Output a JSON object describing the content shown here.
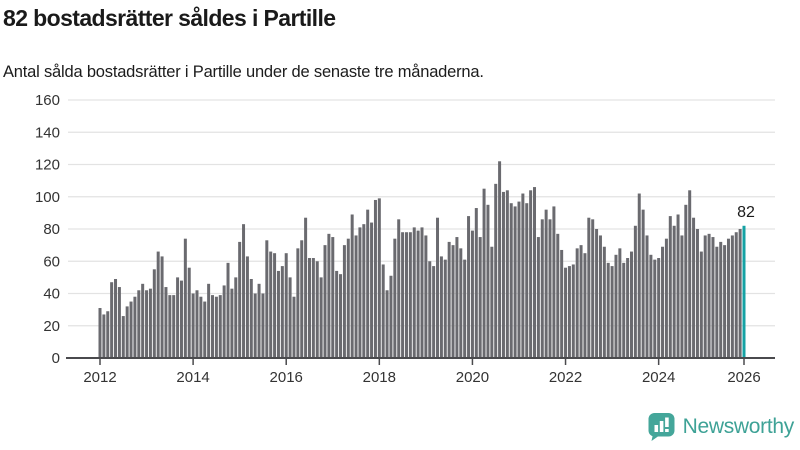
{
  "header": {
    "title": "82 bostadsrätter såldes i Partille",
    "subtitle": "Antal sålda bostadsrätter i Partille under de senaste tre månaderna."
  },
  "chart_data": {
    "type": "bar",
    "title": "82 bostadsrätter såldes i Partille",
    "subtitle": "Antal sålda bostadsrätter i Partille under de senaste tre månaderna.",
    "ylabel": "",
    "xlabel": "",
    "ylim": [
      0,
      160
    ],
    "grid": true,
    "y_ticks": [
      0,
      20,
      40,
      60,
      80,
      100,
      120,
      140,
      160
    ],
    "x_tick_labels": [
      "2012",
      "2014",
      "2016",
      "2018",
      "2020",
      "2022",
      "2024",
      "2026"
    ],
    "x_tick_indices": [
      0,
      24,
      48,
      72,
      96,
      120,
      144,
      166
    ],
    "bar_color": "#6a6a6f",
    "highlight_color": "#15a2a4",
    "highlight_index": 166,
    "highlight_label": "82",
    "values": [
      31,
      27,
      29,
      47,
      49,
      44,
      26,
      32,
      35,
      38,
      42,
      46,
      42,
      43,
      55,
      66,
      63,
      44,
      39,
      39,
      50,
      48,
      74,
      56,
      40,
      42,
      38,
      35,
      46,
      39,
      38,
      39,
      45,
      59,
      43,
      50,
      72,
      83,
      63,
      49,
      40,
      46,
      40,
      73,
      66,
      65,
      54,
      57,
      65,
      50,
      38,
      68,
      73,
      87,
      62,
      62,
      60,
      50,
      70,
      77,
      75,
      54,
      52,
      70,
      74,
      89,
      76,
      81,
      83,
      92,
      84,
      98,
      99,
      58,
      42,
      51,
      74,
      86,
      78,
      78,
      78,
      81,
      79,
      81,
      76,
      60,
      57,
      87,
      63,
      61,
      72,
      70,
      75,
      68,
      61,
      88,
      79,
      93,
      75,
      105,
      95,
      69,
      108,
      122,
      103,
      104,
      96,
      94,
      97,
      102,
      96,
      104,
      106,
      75,
      86,
      92,
      86,
      94,
      77,
      67,
      56,
      57,
      58,
      68,
      70,
      65,
      87,
      86,
      80,
      76,
      69,
      59,
      57,
      64,
      68,
      59,
      62,
      66,
      82,
      102,
      92,
      76,
      64,
      61,
      62,
      69,
      74,
      88,
      82,
      89,
      76,
      95,
      104,
      87,
      80,
      66,
      76,
      77,
      75,
      69,
      72,
      70,
      74,
      76,
      78,
      80,
      82
    ]
  },
  "footer": {
    "brand": "Newsworthy"
  },
  "colors": {
    "grid": "#e3e3e3",
    "axis": "#4a4a4d",
    "tick_text": "#333333",
    "annotation_text": "#1a1a1a",
    "logo_teal": "#3ea296"
  }
}
